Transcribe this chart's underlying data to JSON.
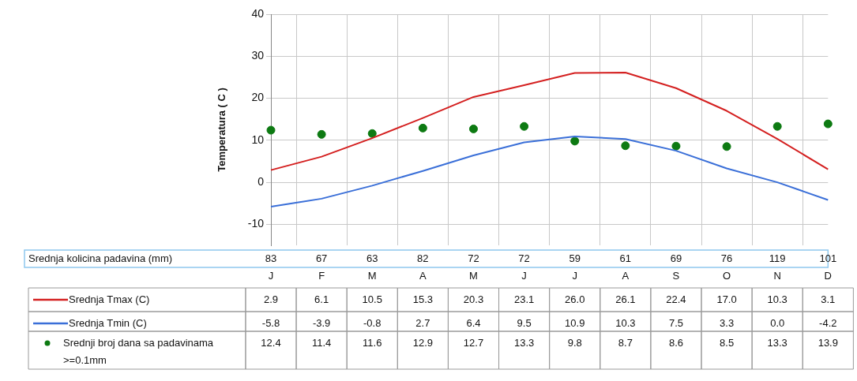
{
  "chart_data": {
    "type": "line",
    "ylabel": "Temperatura ( C )",
    "categories": [
      "J",
      "F",
      "M",
      "A",
      "M",
      "J",
      "J",
      "A",
      "S",
      "O",
      "N",
      "D"
    ],
    "series": [
      {
        "name": "Srednja kolicina padavina (mm)",
        "values": [
          null,
          null,
          null,
          null,
          null,
          null,
          null,
          null,
          null,
          null,
          null,
          null
        ],
        "value_labels": [
          "83",
          "67",
          "63",
          "82",
          "72",
          "72",
          "59",
          "61",
          "69",
          "76",
          "119",
          "101"
        ]
      },
      {
        "name": "Srednja Tmax (C)",
        "type": "line",
        "color": "#d42020",
        "values": [
          2.9,
          6.1,
          10.5,
          15.3,
          20.3,
          23.1,
          26.0,
          26.1,
          22.4,
          17.0,
          10.3,
          3.1
        ],
        "value_labels": [
          "2.9",
          "6.1",
          "10.5",
          "15.3",
          "20.3",
          "23.1",
          "26.0",
          "26.1",
          "22.4",
          "17.0",
          "10.3",
          "3.1"
        ]
      },
      {
        "name": "Srednja Tmin (C)",
        "type": "line",
        "color": "#3a6fd8",
        "values": [
          -5.8,
          -3.9,
          -0.8,
          2.7,
          6.4,
          9.5,
          10.9,
          10.3,
          7.5,
          3.3,
          0.0,
          -4.2
        ],
        "value_labels": [
          "-5.8",
          "-3.9",
          "-0.8",
          "2.7",
          "6.4",
          "9.5",
          "10.9",
          "10.3",
          "7.5",
          "3.3",
          "0.0",
          "-4.2"
        ]
      },
      {
        "name": "Srednji broj dana sa padavinama >=0.1mm",
        "type": "scatter",
        "color": "#0d7a12",
        "marker": "circle",
        "values": [
          12.4,
          11.4,
          11.6,
          12.9,
          12.7,
          13.3,
          9.8,
          8.7,
          8.6,
          8.5,
          13.3,
          13.9
        ],
        "value_labels": [
          "12.4",
          "11.4",
          "11.6",
          "12.9",
          "12.7",
          "13.3",
          "9.8",
          "8.7",
          "8.6",
          "8.5",
          "13.3",
          "13.9"
        ]
      }
    ],
    "ylim": [
      -15,
      40
    ],
    "yticks": [
      -10,
      0,
      10,
      20,
      30,
      40
    ],
    "grid": true,
    "legend": "bottom"
  }
}
